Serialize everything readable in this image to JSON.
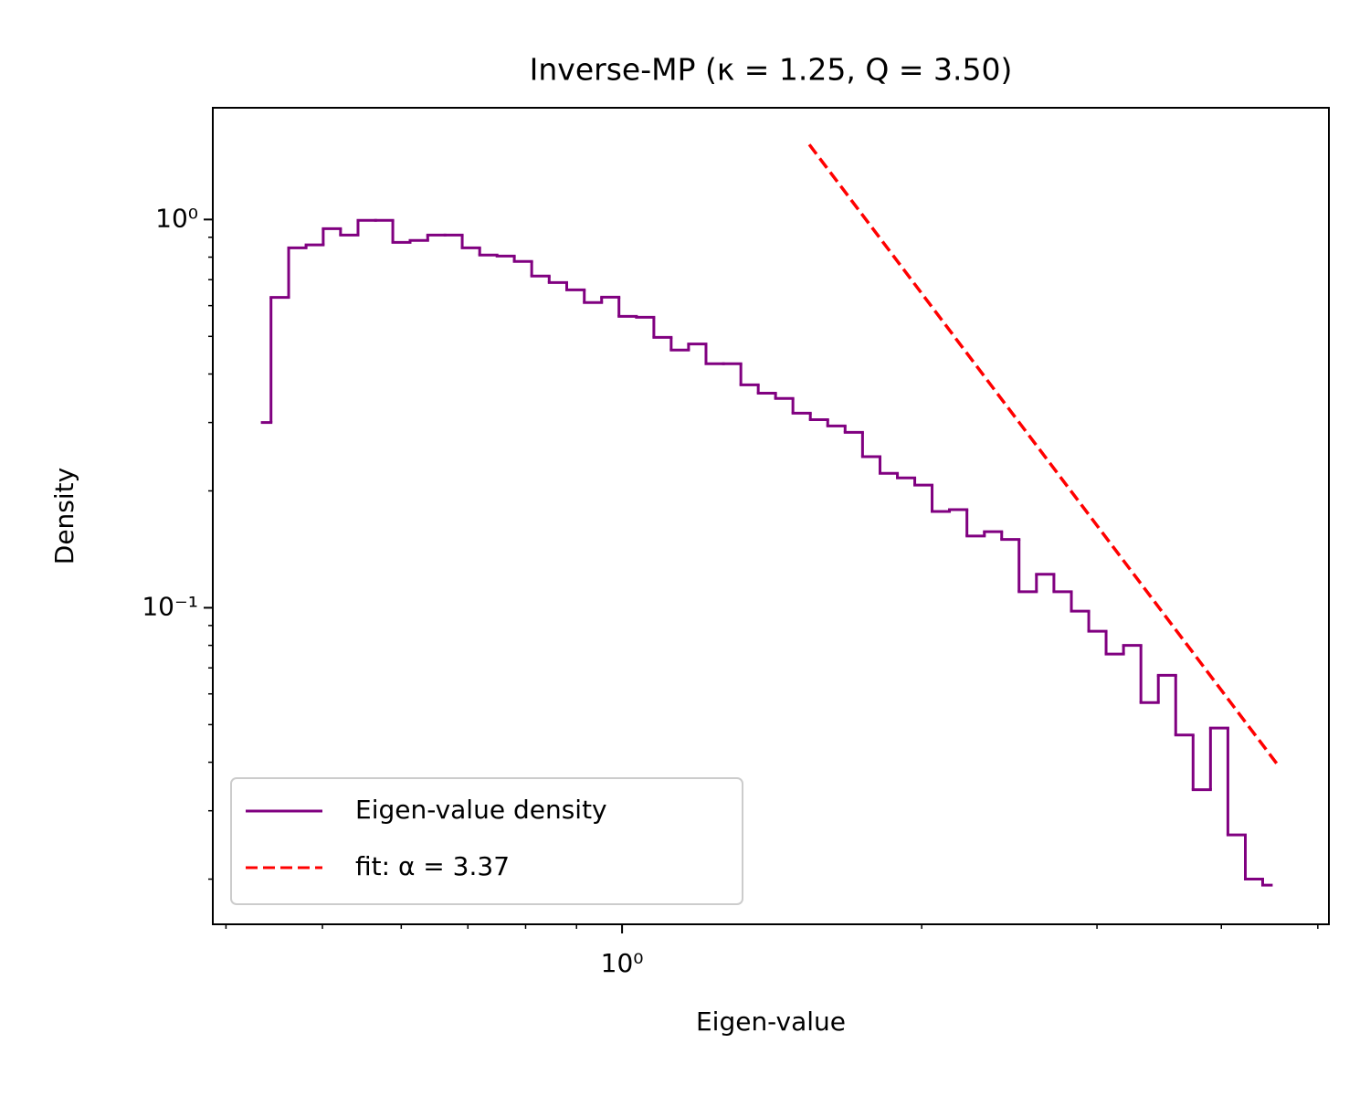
{
  "chart_data": {
    "type": "line",
    "title": "Inverse-MP  (κ = 1.25,  Q = 3.50)",
    "x_label": "Eigen-value",
    "y_label": "Density",
    "x_scale": "log",
    "y_scale": "log",
    "xlim": [
      0.388,
      5.13
    ],
    "ylim": [
      0.0153,
      1.94
    ],
    "xticks": [
      {
        "value": 1,
        "label": "10⁰"
      }
    ],
    "yticks": [
      {
        "value": 0.1,
        "label": "10⁻¹"
      },
      {
        "value": 1,
        "label": "10⁰"
      }
    ],
    "xminorticks": [
      0.4,
      0.5,
      0.6,
      0.7,
      0.8,
      0.9,
      2,
      3,
      4,
      5
    ],
    "yminorticks": [
      0.02,
      0.03,
      0.04,
      0.05,
      0.06,
      0.07,
      0.08,
      0.09,
      0.2,
      0.3,
      0.4,
      0.5,
      0.6,
      0.7,
      0.8,
      0.9
    ],
    "legend": "lower left",
    "series": [
      {
        "name": "Eigen-value density",
        "color": "#800080",
        "style": "step-mid",
        "x": [
          0.435,
          0.453,
          0.472,
          0.491,
          0.511,
          0.532,
          0.554,
          0.577,
          0.6,
          0.625,
          0.651,
          0.677,
          0.705,
          0.734,
          0.764,
          0.795,
          0.828,
          0.862,
          0.898,
          0.935,
          0.973,
          1.013,
          1.055,
          1.098,
          1.143,
          1.19,
          1.239,
          1.29,
          1.343,
          1.398,
          1.455,
          1.515,
          1.577,
          1.642,
          1.709,
          1.78,
          1.853,
          1.929,
          2.008,
          2.09,
          2.176,
          2.266,
          2.359,
          2.455,
          2.556,
          2.661,
          2.771,
          2.885,
          3.003,
          3.126,
          3.255,
          3.388,
          3.528,
          3.672,
          3.823,
          3.98,
          4.144,
          4.314,
          4.49
        ],
        "values": [
          0.3,
          0.63,
          0.845,
          0.86,
          0.947,
          0.912,
          0.995,
          0.995,
          0.873,
          0.883,
          0.912,
          0.912,
          0.845,
          0.81,
          0.805,
          0.78,
          0.715,
          0.688,
          0.659,
          0.611,
          0.631,
          0.563,
          0.56,
          0.497,
          0.461,
          0.478,
          0.425,
          0.425,
          0.375,
          0.357,
          0.346,
          0.317,
          0.305,
          0.294,
          0.283,
          0.245,
          0.222,
          0.216,
          0.207,
          0.177,
          0.179,
          0.153,
          0.157,
          0.15,
          0.11,
          0.122,
          0.11,
          0.098,
          0.087,
          0.076,
          0.08,
          0.057,
          0.067,
          0.047,
          0.034,
          0.049,
          0.026,
          0.02,
          0.0193
        ]
      },
      {
        "name": "fit: α = 3.37",
        "color": "#ff0000",
        "style": "dashed",
        "x": [
          1.542,
          4.55
        ],
        "values": [
          1.56,
          0.0396
        ]
      }
    ]
  }
}
